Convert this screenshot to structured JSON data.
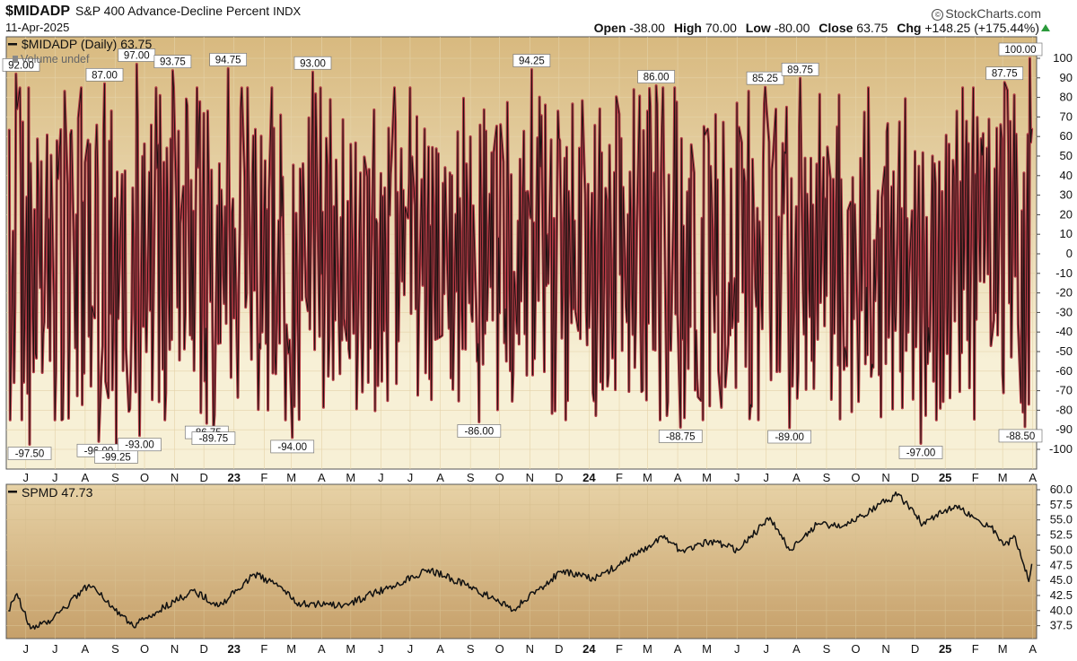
{
  "header": {
    "symbol": "$MIDADP",
    "description": "S&P 400 Advance-Decline Percent",
    "exchange": "INDX",
    "date": "11-Apr-2025",
    "brand": "StockCharts.com",
    "brand_icon": "copyright-icon",
    "open_label": "Open",
    "open": "-38.00",
    "high_label": "High",
    "high": "70.00",
    "low_label": "Low",
    "low": "-80.00",
    "close_label": "Close",
    "close": "63.75",
    "chg_label": "Chg",
    "chg": "+148.25 (+175.44%)",
    "chg_icon": "up-triangle-icon"
  },
  "colors": {
    "line_red": "#b23a44",
    "line_black": "#1a1111",
    "panel_top": "#d8b97f",
    "panel_mid": "#f7f0d6",
    "panel2_top": "#e7d2a6",
    "panel2_bottom": "#c6a06a",
    "up_arrow": "#2b9a3b"
  },
  "chart_data": [
    {
      "type": "line",
      "panel": "top",
      "legend": "$MIDADP (Daily) 63.75",
      "volume_note": "Volume undef",
      "ylim": [
        -100,
        100
      ],
      "yticks": [
        "100",
        "90",
        "80",
        "70",
        "60",
        "50",
        "40",
        "30",
        "20",
        "10",
        "0",
        "-10",
        "-20",
        "-30",
        "-40",
        "-50",
        "-60",
        "-70",
        "-80",
        "-90",
        "-100"
      ],
      "x_tick_labels": [
        "J",
        "J",
        "A",
        "S",
        "O",
        "N",
        "D",
        "23",
        "F",
        "M",
        "A",
        "M",
        "J",
        "J",
        "A",
        "S",
        "O",
        "N",
        "D",
        "24",
        "F",
        "M",
        "A",
        "M",
        "J",
        "J",
        "A",
        "S",
        "O",
        "N",
        "D",
        "25",
        "F",
        "M",
        "A"
      ],
      "series": [
        {
          "name": "$MIDADP (Daily)",
          "last": 63.75
        }
      ],
      "seed": 20250411,
      "annotations": [
        {
          "label": "92.00",
          "date": "2022-06-02",
          "value": 92.0
        },
        {
          "label": "-97.50",
          "date": "2022-06-16",
          "value": -97.5
        },
        {
          "label": "87.00",
          "date": "2022-09-01",
          "value": 87.0
        },
        {
          "label": "-96.00",
          "date": "2022-08-26",
          "value": -96.0
        },
        {
          "label": "-99.25",
          "date": "2022-09-13",
          "value": -99.25
        },
        {
          "label": "97.00",
          "date": "2022-10-04",
          "value": 97.0
        },
        {
          "label": "-93.00",
          "date": "2022-10-07",
          "value": -93.0
        },
        {
          "label": "93.75",
          "date": "2022-11-10",
          "value": 93.75
        },
        {
          "label": "-86.75",
          "date": "2022-12-15",
          "value": -86.75
        },
        {
          "label": "-89.75",
          "date": "2022-12-22",
          "value": -89.75
        },
        {
          "label": "94.75",
          "date": "2023-01-06",
          "value": 94.75
        },
        {
          "label": "-94.00",
          "date": "2023-03-13",
          "value": -94.0
        },
        {
          "label": "93.00",
          "date": "2023-04-03",
          "value": 93.0
        },
        {
          "label": "-86.00",
          "date": "2023-09-21",
          "value": -86.0
        },
        {
          "label": "94.25",
          "date": "2023-11-14",
          "value": 94.25
        },
        {
          "label": "86.00",
          "date": "2024-03-21",
          "value": 86.0
        },
        {
          "label": "-88.75",
          "date": "2024-04-15",
          "value": -88.75
        },
        {
          "label": "85.25",
          "date": "2024-07-11",
          "value": 85.25
        },
        {
          "label": "-89.00",
          "date": "2024-08-05",
          "value": -89.0
        },
        {
          "label": "89.75",
          "date": "2024-08-16",
          "value": 89.75
        },
        {
          "label": "-97.00",
          "date": "2024-12-18",
          "value": -97.0
        },
        {
          "label": "87.75",
          "date": "2025-03-14",
          "value": 87.75
        },
        {
          "label": "100.00",
          "date": "2025-04-09",
          "value": 100.0
        },
        {
          "label": "-88.50",
          "date": "2025-04-04",
          "value": -88.5
        }
      ]
    },
    {
      "type": "line",
      "panel": "bottom",
      "legend": "SPMD 47.73",
      "ylim": [
        36,
        60
      ],
      "yticks": [
        "60.0",
        "57.5",
        "55.0",
        "52.5",
        "50.0",
        "47.5",
        "45.0",
        "42.5",
        "40.0",
        "37.5"
      ],
      "x_tick_labels": [
        "J",
        "J",
        "A",
        "S",
        "O",
        "N",
        "D",
        "23",
        "F",
        "M",
        "A",
        "M",
        "J",
        "J",
        "A",
        "S",
        "O",
        "N",
        "D",
        "24",
        "F",
        "M",
        "A",
        "M",
        "J",
        "J",
        "A",
        "S",
        "O",
        "N",
        "D",
        "25",
        "F",
        "M",
        "A"
      ],
      "series": [
        {
          "name": "SPMD",
          "last": 47.73
        }
      ],
      "anchors": [
        {
          "date": "2022-05-25",
          "value": 40.0
        },
        {
          "date": "2022-06-03",
          "value": 42.8
        },
        {
          "date": "2022-06-17",
          "value": 37.0
        },
        {
          "date": "2022-07-08",
          "value": 38.3
        },
        {
          "date": "2022-08-16",
          "value": 44.3
        },
        {
          "date": "2022-09-30",
          "value": 37.5
        },
        {
          "date": "2022-11-01",
          "value": 40.5
        },
        {
          "date": "2022-12-01",
          "value": 43.3
        },
        {
          "date": "2022-12-28",
          "value": 40.8
        },
        {
          "date": "2023-02-02",
          "value": 46.0
        },
        {
          "date": "2023-03-01",
          "value": 44.0
        },
        {
          "date": "2023-03-17",
          "value": 41.2
        },
        {
          "date": "2023-05-04",
          "value": 40.8
        },
        {
          "date": "2023-06-15",
          "value": 43.5
        },
        {
          "date": "2023-07-31",
          "value": 46.8
        },
        {
          "date": "2023-09-08",
          "value": 44.2
        },
        {
          "date": "2023-10-27",
          "value": 40.2
        },
        {
          "date": "2023-12-14",
          "value": 46.5
        },
        {
          "date": "2024-01-17",
          "value": 45.2
        },
        {
          "date": "2024-03-28",
          "value": 52.0
        },
        {
          "date": "2024-04-19",
          "value": 49.6
        },
        {
          "date": "2024-05-15",
          "value": 51.5
        },
        {
          "date": "2024-06-13",
          "value": 50.0
        },
        {
          "date": "2024-07-16",
          "value": 55.4
        },
        {
          "date": "2024-08-05",
          "value": 50.0
        },
        {
          "date": "2024-09-02",
          "value": 54.2
        },
        {
          "date": "2024-09-30",
          "value": 54.0
        },
        {
          "date": "2024-10-15",
          "value": 55.5
        },
        {
          "date": "2024-11-25",
          "value": 59.3
        },
        {
          "date": "2024-12-20",
          "value": 54.3
        },
        {
          "date": "2025-01-22",
          "value": 57.4
        },
        {
          "date": "2025-02-28",
          "value": 53.8
        },
        {
          "date": "2025-03-13",
          "value": 50.8
        },
        {
          "date": "2025-03-25",
          "value": 52.2
        },
        {
          "date": "2025-04-03",
          "value": 47.5
        },
        {
          "date": "2025-04-08",
          "value": 44.8
        },
        {
          "date": "2025-04-11",
          "value": 47.73
        }
      ]
    }
  ]
}
